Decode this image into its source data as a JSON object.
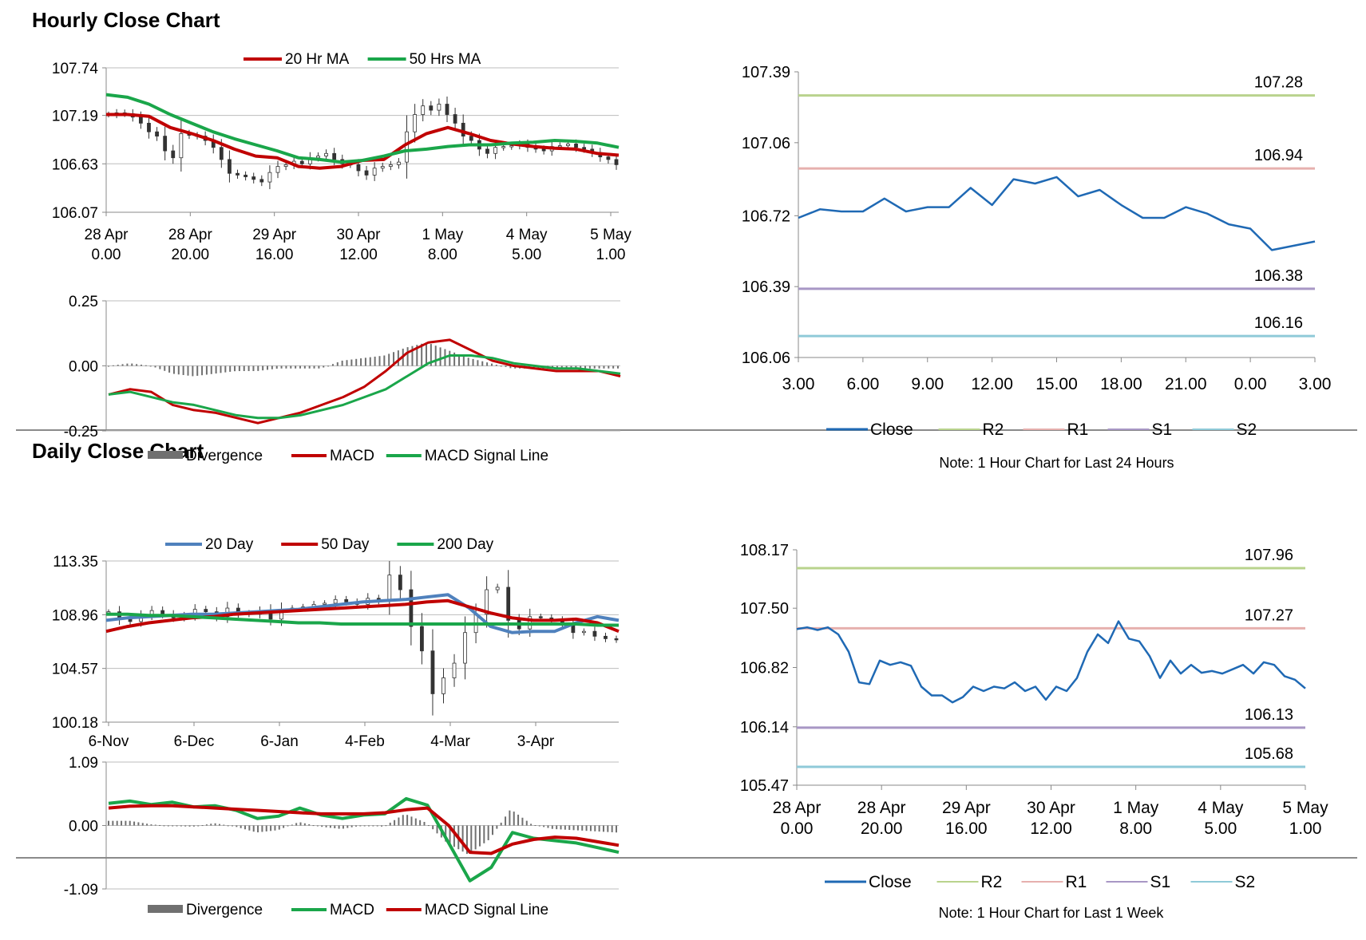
{
  "sections": {
    "hourly_title": "Hourly Close Chart",
    "daily_title": "Daily Close Chart"
  },
  "chart_data": [
    {
      "id": "hourly-price",
      "type": "candlestick",
      "title": "",
      "ylim": [
        106.07,
        107.74
      ],
      "ytick_labels": [
        "107.74",
        "107.19",
        "106.63",
        "106.07"
      ],
      "ytick_values": [
        107.74,
        107.19,
        106.63,
        106.07
      ],
      "xtick_labels": [
        [
          "28 Apr",
          "0.00"
        ],
        [
          "28 Apr",
          "20.00"
        ],
        [
          "29 Apr",
          "16.00"
        ],
        [
          "30 Apr",
          "12.00"
        ],
        [
          "1 May",
          "8.00"
        ],
        [
          "4 May",
          "5.00"
        ],
        [
          "5 May",
          "1.00"
        ]
      ],
      "legend": [
        {
          "name": "20 Hr MA",
          "color": "#c00000"
        },
        {
          "name": "50 Hrs MA",
          "color": "#1aa64a"
        }
      ],
      "series": [
        {
          "name": "20 Hr MA",
          "color": "#c00000",
          "values": [
            107.2,
            107.2,
            107.18,
            107.05,
            106.98,
            106.9,
            106.8,
            106.72,
            106.7,
            106.6,
            106.58,
            106.6,
            106.67,
            106.68,
            106.85,
            106.98,
            107.05,
            106.98,
            106.9,
            106.86,
            106.83,
            106.81,
            106.8,
            106.75,
            106.73
          ]
        },
        {
          "name": "50 Hrs MA",
          "color": "#1aa64a",
          "values": [
            107.43,
            107.4,
            107.32,
            107.2,
            107.1,
            107.0,
            106.92,
            106.85,
            106.78,
            106.7,
            106.68,
            106.65,
            106.67,
            106.72,
            106.78,
            106.8,
            106.83,
            106.85,
            106.85,
            106.87,
            106.88,
            106.9,
            106.89,
            106.87,
            106.82
          ]
        }
      ],
      "ohlc_close": [
        107.2,
        107.22,
        107.21,
        107.17,
        107.1,
        107.0,
        106.95,
        106.78,
        106.7,
        106.98,
        106.96,
        106.95,
        106.9,
        106.82,
        106.68,
        106.52,
        106.5,
        106.48,
        106.45,
        106.42,
        106.53,
        106.6,
        106.62,
        106.66,
        106.63,
        106.7,
        106.72,
        106.75,
        106.68,
        106.63,
        106.62,
        106.55,
        106.5,
        106.58,
        106.6,
        106.62,
        106.65,
        107.0,
        107.2,
        107.3,
        107.25,
        107.32,
        107.2,
        107.1,
        106.95,
        106.9,
        106.8,
        106.75,
        106.82,
        106.83,
        106.84,
        106.86,
        106.82,
        106.8,
        106.78,
        106.83,
        106.84,
        106.86,
        106.82,
        106.8,
        106.76,
        106.71,
        106.68,
        106.62
      ]
    },
    {
      "id": "hourly-macd",
      "type": "line",
      "ylim": [
        -0.25,
        0.25
      ],
      "ytick_labels": [
        "0.25",
        "0.00",
        "-0.25"
      ],
      "ytick_values": [
        0.25,
        0.0,
        -0.25
      ],
      "legend": [
        {
          "name": "Divergence",
          "color": "#707070"
        },
        {
          "name": "MACD",
          "color": "#c00000"
        },
        {
          "name": "MACD Signal Line",
          "color": "#1aa64a"
        }
      ],
      "series": [
        {
          "name": "MACD",
          "color": "#c00000",
          "values": [
            -0.11,
            -0.09,
            -0.1,
            -0.15,
            -0.17,
            -0.18,
            -0.2,
            -0.22,
            -0.2,
            -0.18,
            -0.15,
            -0.12,
            -0.08,
            -0.02,
            0.05,
            0.09,
            0.1,
            0.06,
            0.02,
            0.0,
            -0.01,
            -0.02,
            -0.02,
            -0.02,
            -0.04
          ]
        },
        {
          "name": "MACD Signal Line",
          "color": "#1aa64a",
          "values": [
            -0.11,
            -0.1,
            -0.12,
            -0.14,
            -0.15,
            -0.17,
            -0.19,
            -0.2,
            -0.2,
            -0.19,
            -0.17,
            -0.15,
            -0.12,
            -0.09,
            -0.04,
            0.01,
            0.04,
            0.04,
            0.03,
            0.01,
            0.0,
            -0.01,
            -0.01,
            -0.02,
            -0.03
          ]
        },
        {
          "name": "Divergence",
          "color": "#707070",
          "values": [
            0.0,
            0.01,
            0.0,
            -0.03,
            -0.04,
            -0.03,
            -0.02,
            -0.02,
            -0.01,
            -0.01,
            -0.01,
            0.02,
            0.03,
            0.04,
            0.07,
            0.09,
            0.06,
            0.03,
            0.01,
            -0.01,
            -0.01,
            -0.01,
            -0.01,
            -0.01,
            -0.01
          ]
        }
      ]
    },
    {
      "id": "hourly-24h",
      "type": "line",
      "note": "Note: 1 Hour Chart for Last 24 Hours",
      "ylim": [
        106.06,
        107.39
      ],
      "ytick_labels": [
        "107.39",
        "107.06",
        "106.72",
        "106.39",
        "106.06"
      ],
      "ytick_values": [
        107.39,
        107.06,
        106.72,
        106.39,
        106.06
      ],
      "xtick_labels": [
        "3.00",
        "6.00",
        "9.00",
        "12.00",
        "15.00",
        "18.00",
        "21.00",
        "0.00",
        "3.00"
      ],
      "levels": [
        {
          "name": "R2",
          "value": 107.28,
          "label": "107.28",
          "color": "#b9d38d"
        },
        {
          "name": "R1",
          "value": 106.94,
          "label": "106.94",
          "color": "#e6b0ae"
        },
        {
          "name": "S1",
          "value": 106.38,
          "label": "106.38",
          "color": "#a897c5"
        },
        {
          "name": "S2",
          "value": 106.16,
          "label": "106.16",
          "color": "#8fcad8"
        }
      ],
      "legend": [
        "Close",
        "R2",
        "R1",
        "S1",
        "S2"
      ],
      "series": [
        {
          "name": "Close",
          "color": "#1f69b4",
          "values": [
            106.71,
            106.75,
            106.74,
            106.74,
            106.8,
            106.74,
            106.76,
            106.76,
            106.85,
            106.77,
            106.89,
            106.87,
            106.9,
            106.81,
            106.84,
            106.77,
            106.71,
            106.71,
            106.76,
            106.73,
            106.68,
            106.66,
            106.56,
            106.58,
            106.6
          ]
        }
      ]
    },
    {
      "id": "daily-price",
      "type": "candlestick",
      "ylim": [
        100.18,
        113.35
      ],
      "ytick_labels": [
        "113.35",
        "108.96",
        "104.57",
        "100.18"
      ],
      "ytick_values": [
        113.35,
        108.96,
        104.57,
        100.18
      ],
      "xtick_labels": [
        "6-Nov",
        "6-Dec",
        "6-Jan",
        "4-Feb",
        "4-Mar",
        "3-Apr"
      ],
      "legend": [
        {
          "name": "20 Day",
          "color": "#4f81bd"
        },
        {
          "name": "50 Day",
          "color": "#c00000"
        },
        {
          "name": "200 Day",
          "color": "#1aa64a"
        }
      ],
      "series": [
        {
          "name": "20 Day",
          "color": "#4f81bd",
          "values": [
            108.5,
            108.7,
            108.8,
            108.9,
            109.0,
            109.0,
            109.1,
            109.2,
            109.3,
            109.4,
            109.6,
            109.8,
            110.0,
            110.1,
            110.2,
            110.4,
            110.6,
            109.5,
            108.0,
            107.5,
            107.6,
            107.6,
            108.3,
            108.8,
            108.5
          ]
        },
        {
          "name": "50 Day",
          "color": "#c00000",
          "values": [
            107.6,
            108.0,
            108.3,
            108.5,
            108.7,
            108.8,
            109.0,
            109.1,
            109.2,
            109.3,
            109.4,
            109.5,
            109.6,
            109.7,
            109.8,
            110.0,
            110.1,
            109.6,
            109.1,
            108.7,
            108.5,
            108.5,
            108.6,
            108.3,
            107.6
          ]
        },
        {
          "name": "200 Day",
          "color": "#1aa64a",
          "values": [
            109.0,
            109.0,
            108.9,
            108.9,
            108.8,
            108.7,
            108.6,
            108.5,
            108.4,
            108.3,
            108.3,
            108.2,
            108.2,
            108.2,
            108.2,
            108.2,
            108.2,
            108.2,
            108.2,
            108.2,
            108.2,
            108.2,
            108.2,
            108.1,
            108.1
          ]
        }
      ],
      "ohlc_close": [
        109.2,
        108.6,
        108.4,
        108.9,
        109.3,
        109.0,
        108.7,
        108.9,
        109.4,
        109.2,
        108.8,
        109.5,
        109.1,
        109.0,
        109.3,
        108.6,
        109.4,
        109.5,
        109.6,
        109.8,
        109.9,
        110.2,
        110.0,
        109.8,
        110.3,
        110.1,
        112.2,
        111.0,
        108.0,
        106.0,
        102.5,
        103.8,
        105.0,
        107.5,
        109.0,
        111.0,
        111.2,
        108.5,
        107.8,
        108.8,
        108.7,
        108.5,
        108.2,
        107.5,
        107.6,
        107.2,
        107.0,
        106.9
      ]
    },
    {
      "id": "daily-macd",
      "type": "line",
      "ylim": [
        -1.09,
        1.09
      ],
      "ytick_labels": [
        "1.09",
        "0.00",
        "-1.09"
      ],
      "ytick_values": [
        1.09,
        0.0,
        -1.09
      ],
      "legend": [
        {
          "name": "Divergence",
          "color": "#707070"
        },
        {
          "name": "MACD",
          "color": "#1aa64a"
        },
        {
          "name": "MACD Signal Line",
          "color": "#c00000"
        }
      ],
      "series": [
        {
          "name": "MACD",
          "color": "#1aa64a",
          "values": [
            0.38,
            0.42,
            0.36,
            0.4,
            0.32,
            0.34,
            0.26,
            0.12,
            0.16,
            0.3,
            0.18,
            0.12,
            0.18,
            0.2,
            0.46,
            0.35,
            -0.3,
            -0.95,
            -0.72,
            -0.12,
            -0.22,
            -0.26,
            -0.3,
            -0.38,
            -0.46
          ]
        },
        {
          "name": "MACD Signal Line",
          "color": "#c00000",
          "values": [
            0.3,
            0.33,
            0.34,
            0.34,
            0.32,
            0.3,
            0.28,
            0.26,
            0.24,
            0.22,
            0.2,
            0.2,
            0.2,
            0.22,
            0.27,
            0.3,
            0.0,
            -0.46,
            -0.48,
            -0.32,
            -0.24,
            -0.2,
            -0.22,
            -0.28,
            -0.34
          ]
        },
        {
          "name": "Divergence",
          "color": "#707070",
          "values": [
            0.08,
            0.08,
            0.02,
            -0.01,
            -0.02,
            0.04,
            -0.02,
            -0.12,
            -0.08,
            0.06,
            -0.02,
            -0.06,
            0.0,
            -0.02,
            0.2,
            0.05,
            -0.3,
            -0.5,
            -0.24,
            0.28,
            0.02,
            -0.06,
            -0.08,
            -0.1,
            -0.12
          ]
        }
      ]
    },
    {
      "id": "daily-week",
      "type": "line",
      "note": "Note: 1 Hour Chart for Last 1 Week",
      "ylim": [
        105.47,
        108.17
      ],
      "ytick_labels": [
        "108.17",
        "107.50",
        "106.82",
        "106.14",
        "105.47"
      ],
      "ytick_values": [
        108.17,
        107.5,
        106.82,
        106.14,
        105.47
      ],
      "xtick_labels": [
        [
          "28 Apr",
          "0.00"
        ],
        [
          "28 Apr",
          "20.00"
        ],
        [
          "29 Apr",
          "16.00"
        ],
        [
          "30 Apr",
          "12.00"
        ],
        [
          "1 May",
          "8.00"
        ],
        [
          "4 May",
          "5.00"
        ],
        [
          "5 May",
          "1.00"
        ]
      ],
      "levels": [
        {
          "name": "R2",
          "value": 107.96,
          "label": "107.96",
          "color": "#b9d38d"
        },
        {
          "name": "R1",
          "value": 107.27,
          "label": "107.27",
          "color": "#e6b0ae"
        },
        {
          "name": "S1",
          "value": 106.13,
          "label": "106.13",
          "color": "#a897c5"
        },
        {
          "name": "S2",
          "value": 105.68,
          "label": "105.68",
          "color": "#8fcad8"
        }
      ],
      "legend": [
        "Close",
        "R2",
        "R1",
        "S1",
        "S2"
      ],
      "series": [
        {
          "name": "Close",
          "color": "#1f69b4",
          "values": [
            107.26,
            107.28,
            107.25,
            107.28,
            107.2,
            107.0,
            106.65,
            106.63,
            106.9,
            106.85,
            106.88,
            106.84,
            106.6,
            106.5,
            106.5,
            106.42,
            106.48,
            106.6,
            106.55,
            106.6,
            106.58,
            106.65,
            106.55,
            106.6,
            106.45,
            106.6,
            106.55,
            106.7,
            107.0,
            107.2,
            107.1,
            107.35,
            107.15,
            107.12,
            106.95,
            106.7,
            106.9,
            106.75,
            106.85,
            106.76,
            106.78,
            106.75,
            106.8,
            106.85,
            106.75,
            106.88,
            106.85,
            106.72,
            106.68,
            106.58
          ]
        }
      ]
    }
  ]
}
